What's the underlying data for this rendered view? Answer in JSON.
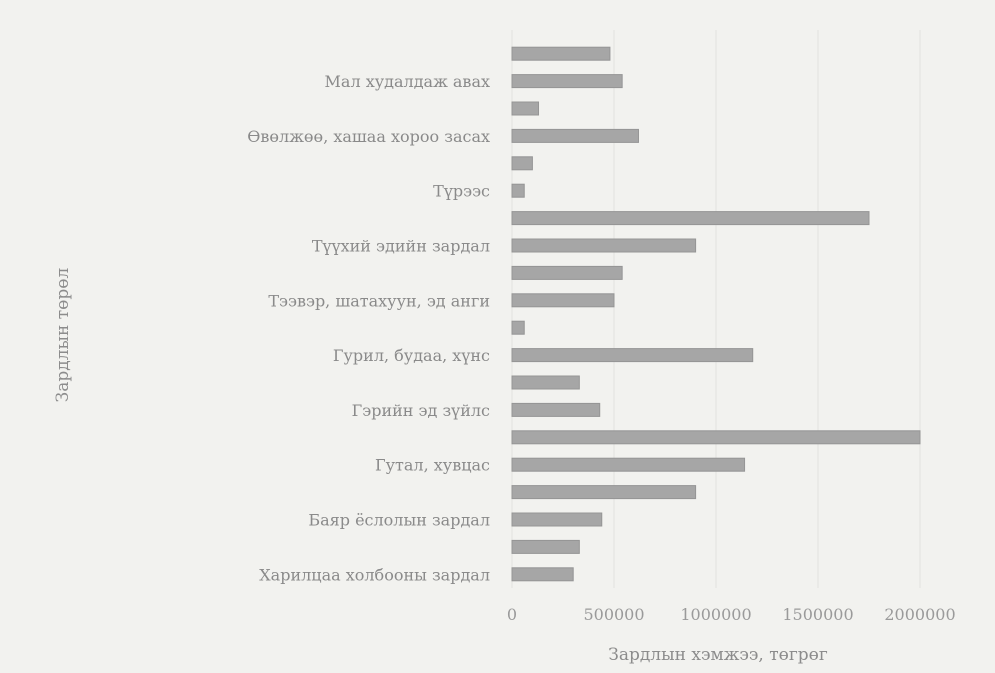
{
  "chart_data": {
    "type": "bar",
    "orientation": "horizontal",
    "xlabel": "Зардлын хэмжээ, төгрөг",
    "ylabel": "Зардлын төрөл",
    "xlim": [
      0,
      2000000
    ],
    "xticks": [
      "0",
      "500000",
      "1000000",
      "1500000",
      "2000000"
    ],
    "grid": true,
    "categories": [
      "",
      "Мал худалдаж авах",
      "",
      "Өвөлжөө, хашаа хороо засах",
      "",
      "Түрээс",
      "",
      "Түүхий эдийн зардал",
      "",
      "Тээвэр, шатахуун, эд анги",
      "",
      "Гурил, будаа, хүнс",
      "",
      "Гэрийн эд зүйлс",
      "",
      "Гутал, хувцас",
      "",
      "Баяр ёслолын зардал",
      "",
      "Харилцаа холбооны зардал"
    ],
    "values": [
      480000,
      540000,
      130000,
      620000,
      100000,
      60000,
      1750000,
      900000,
      540000,
      500000,
      60000,
      1180000,
      330000,
      430000,
      2000000,
      1140000,
      900000,
      440000,
      330000,
      300000
    ]
  }
}
